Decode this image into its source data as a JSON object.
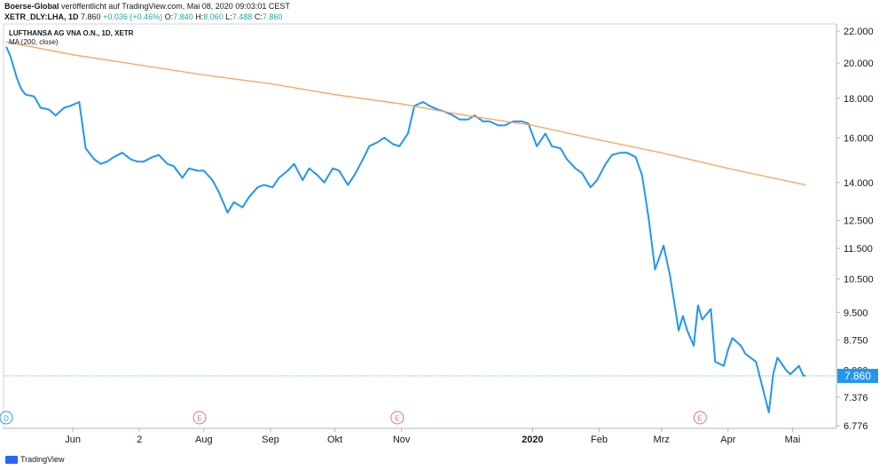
{
  "header": {
    "publisher": "Boerse-Global",
    "published_text": "veröffentlicht auf TradingView.com, Mai 08, 2020 09:03:01 CEST",
    "symbol": "XETR_DLY:LHA, 1D",
    "last": "7.860",
    "change": "+0.036 (+0.46%)",
    "open_label": "O:",
    "open": "7.840",
    "high_label": "H:",
    "high": "8.060",
    "low_label": "L:",
    "low": "7.488",
    "close_label": "C:",
    "close": "7.860"
  },
  "legend": {
    "title": "LUFTHANSA AG VNA O.N., 1D, XETR",
    "indicator": "MA (200, close)"
  },
  "footer": {
    "brand": "TradingView"
  },
  "colors": {
    "price": "#2196f3",
    "ma": "#f7a35c",
    "last_label_bg": "#2196f3",
    "event_marker": "#e57373",
    "dividend_marker": "#2196f3"
  },
  "chart_data": {
    "type": "line",
    "yscale": "log",
    "ylim": [
      6.776,
      22.0
    ],
    "y_ticks": [
      "22.000",
      "20.000",
      "18.000",
      "16.000",
      "14.000",
      "12.500",
      "11.500",
      "10.500",
      "9.500",
      "8.750",
      "8.000",
      "7.376",
      "6.776"
    ],
    "x_ticks": [
      "Jun",
      "2",
      "Aug",
      "Sep",
      "Okt",
      "Nov",
      "2020",
      "Feb",
      "Mrz",
      "Apr",
      "Mai"
    ],
    "last_value": "7.860",
    "event_markers": [
      {
        "letter": "D",
        "x": "2019-05-01"
      },
      {
        "letter": "E",
        "x": "2019-07-30"
      },
      {
        "letter": "E",
        "x": "2019-10-30"
      },
      {
        "letter": "E",
        "x": "2020-03-19"
      }
    ],
    "series": [
      {
        "id": "price",
        "x": [
          "2019-05-01",
          "2019-05-03",
          "2019-05-06",
          "2019-05-08",
          "2019-05-10",
          "2019-05-14",
          "2019-05-17",
          "2019-05-21",
          "2019-05-24",
          "2019-05-28",
          "2019-05-31",
          "2019-06-04",
          "2019-06-07",
          "2019-06-11",
          "2019-06-14",
          "2019-06-17",
          "2019-06-20",
          "2019-06-24",
          "2019-06-28",
          "2019-07-01",
          "2019-07-04",
          "2019-07-08",
          "2019-07-11",
          "2019-07-15",
          "2019-07-18",
          "2019-07-22",
          "2019-07-25",
          "2019-07-29",
          "2019-08-01",
          "2019-08-05",
          "2019-08-08",
          "2019-08-12",
          "2019-08-15",
          "2019-08-19",
          "2019-08-22",
          "2019-08-26",
          "2019-08-29",
          "2019-09-02",
          "2019-09-05",
          "2019-09-09",
          "2019-09-12",
          "2019-09-16",
          "2019-09-19",
          "2019-09-23",
          "2019-09-26",
          "2019-09-30",
          "2019-10-03",
          "2019-10-07",
          "2019-10-10",
          "2019-10-14",
          "2019-10-17",
          "2019-10-21",
          "2019-10-24",
          "2019-10-28",
          "2019-10-31",
          "2019-11-04",
          "2019-11-07",
          "2019-11-11",
          "2019-11-14",
          "2019-11-18",
          "2019-11-21",
          "2019-11-25",
          "2019-11-28",
          "2019-12-02",
          "2019-12-05",
          "2019-12-09",
          "2019-12-12",
          "2019-12-16",
          "2019-12-19",
          "2019-12-23",
          "2019-12-27",
          "2019-12-30",
          "2020-01-03",
          "2020-01-07",
          "2020-01-10",
          "2020-01-14",
          "2020-01-17",
          "2020-01-21",
          "2020-01-24",
          "2020-01-28",
          "2020-01-31",
          "2020-02-04",
          "2020-02-07",
          "2020-02-11",
          "2020-02-14",
          "2020-02-18",
          "2020-02-21",
          "2020-02-24",
          "2020-02-27",
          "2020-03-02",
          "2020-03-05",
          "2020-03-09",
          "2020-03-11",
          "2020-03-13",
          "2020-03-16",
          "2020-03-18",
          "2020-03-20",
          "2020-03-24",
          "2020-03-26",
          "2020-03-30",
          "2020-04-01",
          "2020-04-03",
          "2020-04-07",
          "2020-04-09",
          "2020-04-14",
          "2020-04-16",
          "2020-04-20",
          "2020-04-22",
          "2020-04-24",
          "2020-04-28",
          "2020-04-30",
          "2020-05-04",
          "2020-05-06",
          "2020-05-07"
        ],
        "y": [
          21.0,
          20.4,
          19.1,
          18.5,
          18.2,
          18.1,
          17.5,
          17.4,
          17.1,
          17.5,
          17.6,
          17.8,
          15.5,
          15.0,
          14.8,
          14.9,
          15.1,
          15.3,
          15.0,
          14.9,
          14.9,
          15.1,
          15.2,
          14.8,
          14.7,
          14.2,
          14.6,
          14.5,
          14.5,
          14.1,
          13.6,
          12.8,
          13.2,
          13.0,
          13.4,
          13.8,
          13.9,
          13.8,
          14.2,
          14.5,
          14.8,
          14.1,
          14.6,
          14.3,
          14.0,
          14.6,
          14.5,
          13.9,
          14.3,
          15.0,
          15.6,
          15.8,
          16.0,
          15.7,
          15.6,
          16.2,
          17.6,
          17.8,
          17.6,
          17.4,
          17.3,
          17.1,
          16.9,
          16.9,
          17.1,
          16.8,
          16.8,
          16.6,
          16.6,
          16.8,
          16.8,
          16.7,
          15.6,
          16.2,
          15.6,
          15.5,
          15.0,
          14.6,
          14.4,
          13.8,
          14.1,
          14.8,
          15.2,
          15.3,
          15.3,
          15.1,
          14.3,
          12.6,
          10.8,
          11.6,
          10.6,
          9.0,
          9.4,
          9.0,
          8.6,
          9.7,
          9.3,
          9.6,
          8.2,
          8.1,
          8.5,
          8.8,
          8.6,
          8.4,
          8.2,
          7.8,
          7.05,
          7.9,
          8.3,
          8.0,
          7.9,
          8.1,
          7.87,
          7.86
        ]
      },
      {
        "id": "ma",
        "x": [
          "2019-05-01",
          "2019-06-01",
          "2019-07-01",
          "2019-08-01",
          "2019-09-01",
          "2019-10-01",
          "2019-11-01",
          "2019-12-01",
          "2020-01-01",
          "2020-02-01",
          "2020-03-01",
          "2020-04-01",
          "2020-05-07"
        ],
        "y": [
          21.3,
          20.5,
          19.9,
          19.3,
          18.8,
          18.2,
          17.7,
          17.1,
          16.6,
          15.9,
          15.3,
          14.6,
          13.9
        ]
      }
    ]
  }
}
